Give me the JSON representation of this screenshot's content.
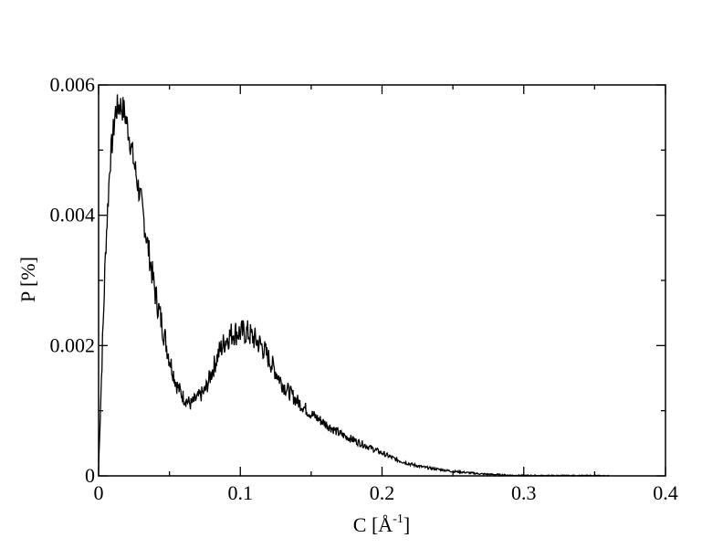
{
  "chart_data": {
    "type": "line",
    "title": "",
    "xlabel": "C [Å",
    "xlabel_sup": "-1",
    "xlabel_close": "]",
    "ylabel": "P [%]",
    "xlim": [
      0,
      0.4
    ],
    "ylim": [
      0,
      0.006
    ],
    "x_ticks": [
      {
        "value": 0,
        "label": "0"
      },
      {
        "value": 0.1,
        "label": "0.1"
      },
      {
        "value": 0.2,
        "label": "0.2"
      },
      {
        "value": 0.3,
        "label": "0.3"
      },
      {
        "value": 0.4,
        "label": "0.4"
      }
    ],
    "y_ticks": [
      {
        "value": 0,
        "label": "0"
      },
      {
        "value": 0.002,
        "label": "0.002"
      },
      {
        "value": 0.004,
        "label": "0.004"
      },
      {
        "value": 0.006,
        "label": "0.006"
      }
    ],
    "grid": false,
    "series": [
      {
        "color": "#000000",
        "x": [
          0,
          0.002,
          0.005,
          0.008,
          0.012,
          0.015,
          0.018,
          0.021,
          0.025,
          0.03,
          0.035,
          0.04,
          0.045,
          0.05,
          0.055,
          0.06,
          0.065,
          0.07,
          0.075,
          0.08,
          0.085,
          0.09,
          0.095,
          0.1,
          0.105,
          0.11,
          0.115,
          0.12,
          0.125,
          0.13,
          0.14,
          0.15,
          0.16,
          0.17,
          0.18,
          0.19,
          0.2,
          0.21,
          0.22,
          0.23,
          0.24,
          0.25,
          0.26,
          0.27,
          0.28,
          0.29,
          0.3,
          0.32,
          0.34,
          0.36
        ],
        "y": [
          0.0001,
          0.0015,
          0.0035,
          0.0048,
          0.0056,
          0.0057,
          0.0056,
          0.0053,
          0.0048,
          0.0042,
          0.0035,
          0.0028,
          0.0023,
          0.0018,
          0.0014,
          0.0012,
          0.0011,
          0.0012,
          0.0013,
          0.0016,
          0.0019,
          0.0021,
          0.0022,
          0.0022,
          0.0022,
          0.0021,
          0.002,
          0.0018,
          0.0016,
          0.0014,
          0.00115,
          0.00095,
          0.0008,
          0.00065,
          0.00055,
          0.00045,
          0.00035,
          0.00025,
          0.00018,
          0.00013,
          0.0001,
          7e-05,
          5e-05,
          3e-05,
          2e-05,
          1e-05,
          5e-06,
          3e-06,
          2e-06,
          1e-06
        ]
      }
    ]
  }
}
